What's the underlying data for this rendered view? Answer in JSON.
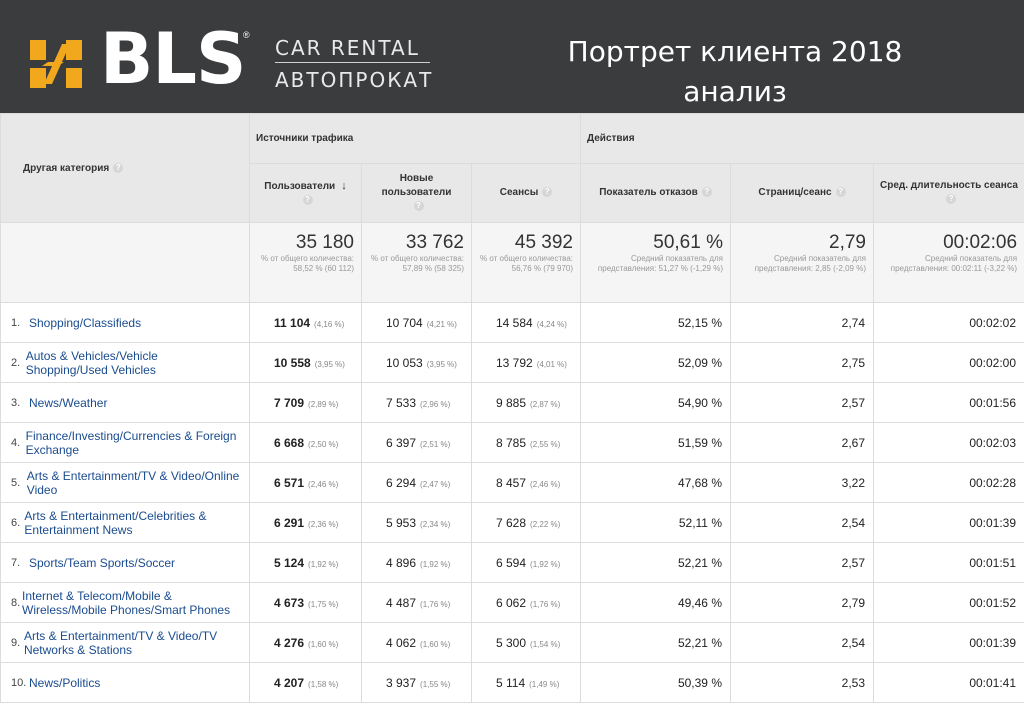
{
  "brand": {
    "name": "BLS",
    "reg_mark": "®",
    "tagline_top": "CAR RENTAL",
    "tagline_bottom": "АВТОПРОКАТ",
    "mark_color": "#f2a81d"
  },
  "slide": {
    "title_line1": "Портрет клиента 2018",
    "title_line2": "анализ"
  },
  "table": {
    "category_header": "Другая категория",
    "group_traffic": "Источники трафика",
    "group_actions": "Действия",
    "col_users": "Пользователи",
    "col_new_users": "Новые пользователи",
    "col_sessions": "Сеансы",
    "col_bounce": "Показатель отказов",
    "col_pages": "Страниц/сеанс",
    "col_duration": "Сред. длительность сеанса",
    "help_glyph": "?",
    "sort_glyph": "↓",
    "totals": {
      "users": "35 180",
      "users_note": "% от общего количества: 58,52 % (60 112)",
      "new_users": "33 762",
      "new_users_note": "% от общего количества: 57,89 % (58 325)",
      "sessions": "45 392",
      "sessions_note": "% от общего количества: 56,76 % (79 970)",
      "bounce": "50,61 %",
      "bounce_note": "Средний показатель для представления: 51,27 % (-1,29 %)",
      "pages": "2,79",
      "pages_note": "Средний показатель для представления: 2,85 (-2,09 %)",
      "duration": "00:02:06",
      "duration_note": "Средний показатель для представления: 00:02:11 (-3,22 %)"
    },
    "rows": [
      {
        "rank": "1.",
        "category": "Shopping/Classifieds",
        "users": "11 104",
        "users_pct": "(4,16 %)",
        "new_users": "10 704",
        "new_users_pct": "(4,21 %)",
        "sessions": "14 584",
        "sessions_pct": "(4,24 %)",
        "bounce": "52,15 %",
        "pages": "2,74",
        "duration": "00:02:02"
      },
      {
        "rank": "2.",
        "category": "Autos & Vehicles/Vehicle Shopping/Used Vehicles",
        "users": "10 558",
        "users_pct": "(3,95 %)",
        "new_users": "10 053",
        "new_users_pct": "(3,95 %)",
        "sessions": "13 792",
        "sessions_pct": "(4,01 %)",
        "bounce": "52,09 %",
        "pages": "2,75",
        "duration": "00:02:00"
      },
      {
        "rank": "3.",
        "category": "News/Weather",
        "users": "7 709",
        "users_pct": "(2,89 %)",
        "new_users": "7 533",
        "new_users_pct": "(2,96 %)",
        "sessions": "9 885",
        "sessions_pct": "(2,87 %)",
        "bounce": "54,90 %",
        "pages": "2,57",
        "duration": "00:01:56"
      },
      {
        "rank": "4.",
        "category": "Finance/Investing/Currencies & Foreign Exchange",
        "users": "6 668",
        "users_pct": "(2,50 %)",
        "new_users": "6 397",
        "new_users_pct": "(2,51 %)",
        "sessions": "8 785",
        "sessions_pct": "(2,55 %)",
        "bounce": "51,59 %",
        "pages": "2,67",
        "duration": "00:02:03"
      },
      {
        "rank": "5.",
        "category": "Arts & Entertainment/TV & Video/Online Video",
        "users": "6 571",
        "users_pct": "(2,46 %)",
        "new_users": "6 294",
        "new_users_pct": "(2,47 %)",
        "sessions": "8 457",
        "sessions_pct": "(2,46 %)",
        "bounce": "47,68 %",
        "pages": "3,22",
        "duration": "00:02:28"
      },
      {
        "rank": "6.",
        "category": "Arts & Entertainment/Celebrities & Entertainment News",
        "users": "6 291",
        "users_pct": "(2,36 %)",
        "new_users": "5 953",
        "new_users_pct": "(2,34 %)",
        "sessions": "7 628",
        "sessions_pct": "(2,22 %)",
        "bounce": "52,11 %",
        "pages": "2,54",
        "duration": "00:01:39"
      },
      {
        "rank": "7.",
        "category": "Sports/Team Sports/Soccer",
        "users": "5 124",
        "users_pct": "(1,92 %)",
        "new_users": "4 896",
        "new_users_pct": "(1,92 %)",
        "sessions": "6 594",
        "sessions_pct": "(1,92 %)",
        "bounce": "52,21 %",
        "pages": "2,57",
        "duration": "00:01:51"
      },
      {
        "rank": "8.",
        "category": "Internet & Telecom/Mobile & Wireless/Mobile Phones/Smart Phones",
        "users": "4 673",
        "users_pct": "(1,75 %)",
        "new_users": "4 487",
        "new_users_pct": "(1,76 %)",
        "sessions": "6 062",
        "sessions_pct": "(1,76 %)",
        "bounce": "49,46 %",
        "pages": "2,79",
        "duration": "00:01:52"
      },
      {
        "rank": "9.",
        "category": "Arts & Entertainment/TV & Video/TV Networks & Stations",
        "users": "4 276",
        "users_pct": "(1,60 %)",
        "new_users": "4 062",
        "new_users_pct": "(1,60 %)",
        "sessions": "5 300",
        "sessions_pct": "(1,54 %)",
        "bounce": "52,21 %",
        "pages": "2,54",
        "duration": "00:01:39"
      },
      {
        "rank": "10.",
        "category": "News/Politics",
        "users": "4 207",
        "users_pct": "(1,58 %)",
        "new_users": "3 937",
        "new_users_pct": "(1,55 %)",
        "sessions": "5 114",
        "sessions_pct": "(1,49 %)",
        "bounce": "50,39 %",
        "pages": "2,53",
        "duration": "00:01:41"
      }
    ]
  }
}
